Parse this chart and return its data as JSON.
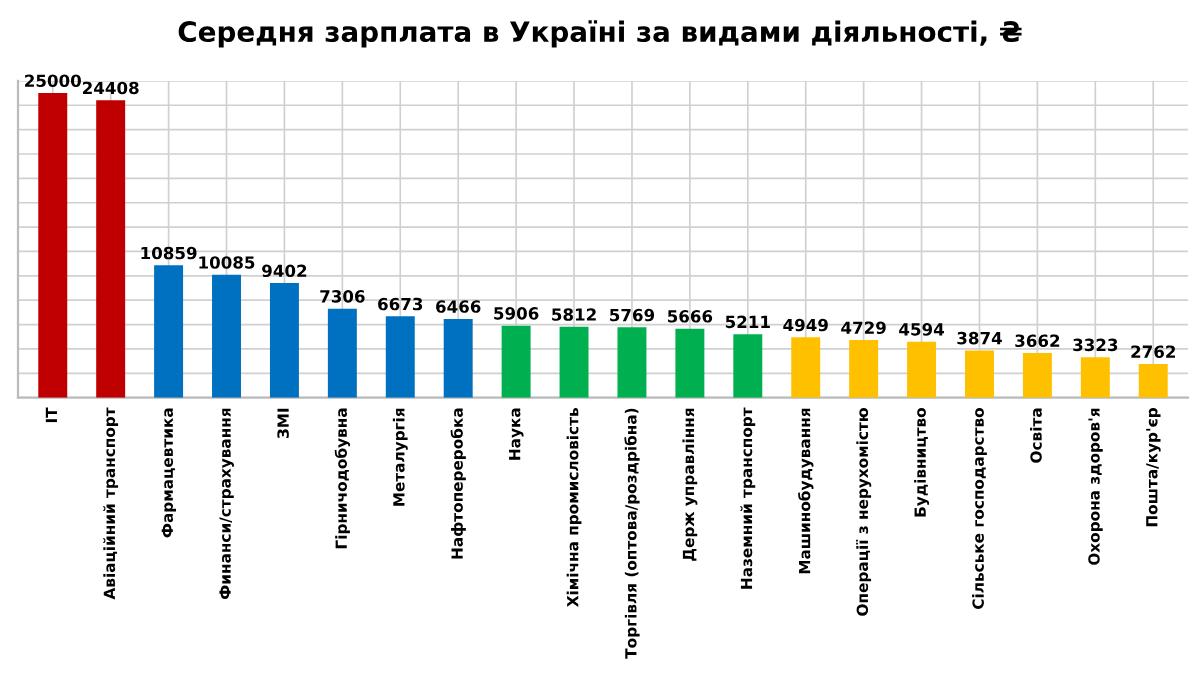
{
  "chart_data": {
    "type": "bar",
    "title": "Середня зарплата в Україні за видами діяльності, ₴",
    "categories": [
      "IT",
      "Авіаційний транспорт",
      "Фармацевтика",
      "Финанси/страхування",
      "ЗМІ",
      "Гірничодобувна",
      "Металургія",
      "Нафтопереробка",
      "Наука",
      "Хімічна промисловість",
      "Торгівля (оптова/роздрібна)",
      "Держ управління",
      "Наземний транспорт",
      "Машинобудування",
      "Операції з нерухомістю",
      "Будівництво",
      "Сільське господарство",
      "Освіта",
      "Охорона здоров'я",
      "Пошта/кур'єр"
    ],
    "values": [
      25000,
      24408,
      10859,
      10085,
      9402,
      7306,
      6673,
      6466,
      5906,
      5812,
      5769,
      5666,
      5211,
      4949,
      4729,
      4594,
      3874,
      3662,
      3323,
      2762
    ],
    "colors": [
      "#c00000",
      "#c00000",
      "#0070c0",
      "#0070c0",
      "#0070c0",
      "#0070c0",
      "#0070c0",
      "#0070c0",
      "#00b050",
      "#00b050",
      "#00b050",
      "#00b050",
      "#00b050",
      "#ffc000",
      "#ffc000",
      "#ffc000",
      "#ffc000",
      "#ffc000",
      "#ffc000",
      "#ffc000"
    ],
    "data_labels": true,
    "ylim": [
      0,
      26000
    ],
    "yticks": [
      {
        "value": 0,
        "label": null
      },
      {
        "value": 2000,
        "label": null
      },
      {
        "value": 4000,
        "label": null
      },
      {
        "value": 6000,
        "label": null
      },
      {
        "value": 8000,
        "label": null
      },
      {
        "value": 10000,
        "label": null
      },
      {
        "value": 12000,
        "label": null
      },
      {
        "value": 14000,
        "label": null
      },
      {
        "value": 16000,
        "label": null
      },
      {
        "value": 18000,
        "label": null
      },
      {
        "value": 20000,
        "label": null
      },
      {
        "value": 22000,
        "label": null
      },
      {
        "value": 24000,
        "label": null
      },
      {
        "value": 26000,
        "label": null
      }
    ],
    "grid": true,
    "tick_labels": "x"
  }
}
